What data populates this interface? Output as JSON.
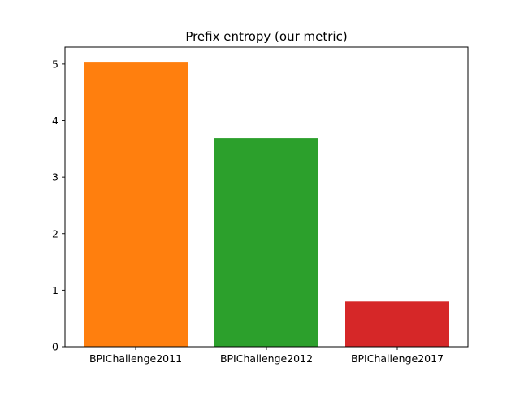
{
  "chart_data": {
    "type": "bar",
    "title": "Prefix entropy (our metric)",
    "xlabel": "",
    "ylabel": "",
    "categories": [
      "BPIChallenge2011",
      "BPIChallenge2012",
      "BPIChallenge2017"
    ],
    "values": [
      5.04,
      3.69,
      0.8
    ],
    "colors": [
      "#ff7f0e",
      "#2ca02c",
      "#d62728"
    ],
    "ylim": [
      0,
      5.3
    ],
    "yticks": [
      0,
      1,
      2,
      3,
      4,
      5
    ],
    "grid": false,
    "legend": "none"
  }
}
